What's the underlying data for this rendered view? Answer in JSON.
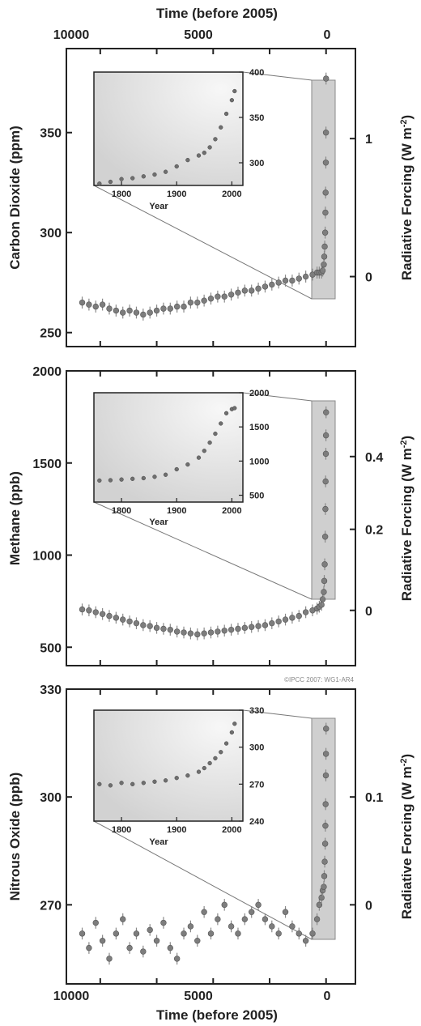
{
  "figure": {
    "top_axis_title": "Time (before 2005)",
    "bottom_axis_title": "Time (before 2005)",
    "time_ticks": [
      "10000",
      "5000",
      "0"
    ],
    "credit": "©IPCC 2007: WG1-AR4"
  },
  "chart_data": [
    {
      "type": "scatter",
      "id": "co2",
      "ylabel": "Carbon Dioxide (ppm)",
      "ylabel2": "Radiative Forcing (W m-2)",
      "xlim": [
        11500,
        -1300
      ],
      "ylim": [
        243,
        392
      ],
      "yticks": [
        250,
        300,
        350
      ],
      "rf_ticks": [
        {
          "label": "1",
          "value": 347
        },
        {
          "label": "0",
          "value": 278
        }
      ],
      "series": [
        {
          "x": [
            10800,
            10500,
            10200,
            9900,
            9600,
            9300,
            9000,
            8700,
            8400,
            8100,
            7800,
            7500,
            7200,
            6900,
            6600,
            6300,
            6000,
            5700,
            5400,
            5100,
            4800,
            4500,
            4200,
            3900,
            3600,
            3300,
            3000,
            2700,
            2400,
            2100,
            1800,
            1500,
            1200,
            900,
            600,
            400,
            300,
            200,
            150,
            100,
            80,
            60,
            40,
            30,
            20,
            10,
            5,
            0
          ],
          "y": [
            265,
            264,
            263,
            264,
            262,
            261,
            260,
            261,
            260,
            259,
            260,
            261,
            262,
            262,
            263,
            263,
            265,
            265,
            266,
            267,
            268,
            268,
            269,
            270,
            271,
            271,
            272,
            273,
            274,
            275,
            276,
            276,
            277,
            278,
            279,
            280,
            280,
            280,
            281,
            284,
            288,
            293,
            300,
            310,
            320,
            335,
            350,
            377
          ]
        }
      ],
      "inset": {
        "xlabel": "Year",
        "xlim": [
          1750,
          2020
        ],
        "ylim": [
          275,
          400
        ],
        "xticks": [
          1800,
          1900,
          2000
        ],
        "yticks": [
          300,
          350,
          400
        ],
        "x": [
          1760,
          1780,
          1800,
          1820,
          1840,
          1860,
          1880,
          1900,
          1920,
          1940,
          1950,
          1960,
          1970,
          1980,
          1990,
          2000,
          2005
        ],
        "y": [
          277,
          279,
          282,
          283,
          285,
          287,
          290,
          296,
          303,
          308,
          311,
          317,
          326,
          339,
          354,
          369,
          379
        ]
      }
    },
    {
      "type": "scatter",
      "id": "ch4",
      "ylabel": "Methane (ppb)",
      "ylabel2": "Radiative Forcing (W m-2)",
      "xlim": [
        11500,
        -1300
      ],
      "ylim": [
        400,
        2000
      ],
      "yticks": [
        500,
        1000,
        1500,
        2000
      ],
      "rf_ticks": [
        {
          "label": "0.4",
          "value": 1535
        },
        {
          "label": "0.2",
          "value": 1140
        },
        {
          "label": "0",
          "value": 700
        }
      ],
      "series": [
        {
          "x": [
            10800,
            10500,
            10200,
            9900,
            9600,
            9300,
            9000,
            8700,
            8400,
            8100,
            7800,
            7500,
            7200,
            6900,
            6600,
            6300,
            6000,
            5700,
            5400,
            5100,
            4800,
            4500,
            4200,
            3900,
            3600,
            3300,
            3000,
            2700,
            2400,
            2100,
            1800,
            1500,
            1200,
            900,
            600,
            400,
            300,
            200,
            150,
            100,
            80,
            60,
            40,
            30,
            20,
            10,
            5,
            0
          ],
          "y": [
            705,
            700,
            690,
            680,
            670,
            660,
            650,
            640,
            630,
            620,
            615,
            605,
            600,
            595,
            585,
            580,
            575,
            570,
            575,
            580,
            585,
            590,
            595,
            600,
            605,
            610,
            615,
            620,
            630,
            640,
            650,
            660,
            670,
            690,
            700,
            710,
            720,
            730,
            760,
            800,
            860,
            950,
            1100,
            1250,
            1400,
            1550,
            1650,
            1775
          ]
        }
      ],
      "inset": {
        "xlabel": "Year",
        "xlim": [
          1750,
          2020
        ],
        "ylim": [
          400,
          2000
        ],
        "xticks": [
          1800,
          1900,
          2000
        ],
        "yticks": [
          500,
          1000,
          1500,
          2000
        ],
        "x": [
          1760,
          1780,
          1800,
          1820,
          1840,
          1860,
          1880,
          1900,
          1920,
          1940,
          1950,
          1960,
          1970,
          1980,
          1990,
          2000,
          2005
        ],
        "y": [
          715,
          720,
          730,
          740,
          750,
          770,
          800,
          880,
          950,
          1050,
          1150,
          1270,
          1400,
          1550,
          1700,
          1760,
          1775
        ]
      }
    },
    {
      "type": "scatter",
      "id": "n2o",
      "ylabel": "Nitrous Oxide (ppb)",
      "ylabel2": "Radiative Forcing (W m-2)",
      "xlim": [
        11500,
        -1300
      ],
      "ylim": [
        248,
        330
      ],
      "yticks": [
        270,
        300,
        330
      ],
      "rf_ticks": [
        {
          "label": "0.1",
          "value": 300
        },
        {
          "label": "0",
          "value": 270
        }
      ],
      "series": [
        {
          "x": [
            10800,
            10500,
            10200,
            9900,
            9600,
            9300,
            9000,
            8700,
            8400,
            8100,
            7800,
            7500,
            7200,
            6900,
            6600,
            6300,
            6000,
            5700,
            5400,
            5100,
            4800,
            4500,
            4200,
            3900,
            3600,
            3300,
            3000,
            2700,
            2400,
            2100,
            1800,
            1500,
            1200,
            900,
            600,
            400,
            300,
            200,
            150,
            100,
            80,
            60,
            40,
            30,
            20,
            10,
            5,
            0
          ],
          "y": [
            262,
            258,
            265,
            260,
            255,
            262,
            266,
            258,
            262,
            257,
            263,
            260,
            265,
            258,
            255,
            262,
            264,
            260,
            268,
            262,
            266,
            270,
            264,
            262,
            266,
            268,
            270,
            266,
            264,
            262,
            268,
            264,
            262,
            260,
            262,
            266,
            270,
            272,
            274,
            275,
            278,
            282,
            287,
            292,
            298,
            306,
            312,
            319
          ]
        }
      ],
      "inset": {
        "xlabel": "Year",
        "xlim": [
          1750,
          2020
        ],
        "ylim": [
          240,
          330
        ],
        "xticks": [
          1800,
          1900,
          2000
        ],
        "yticks": [
          240,
          270,
          300,
          330
        ],
        "x": [
          1760,
          1780,
          1800,
          1820,
          1840,
          1860,
          1880,
          1900,
          1920,
          1940,
          1950,
          1960,
          1970,
          1980,
          1990,
          2000,
          2005
        ],
        "y": [
          270,
          269,
          271,
          270,
          271,
          272,
          273,
          275,
          277,
          280,
          283,
          287,
          291,
          296,
          303,
          312,
          319
        ]
      }
    }
  ]
}
